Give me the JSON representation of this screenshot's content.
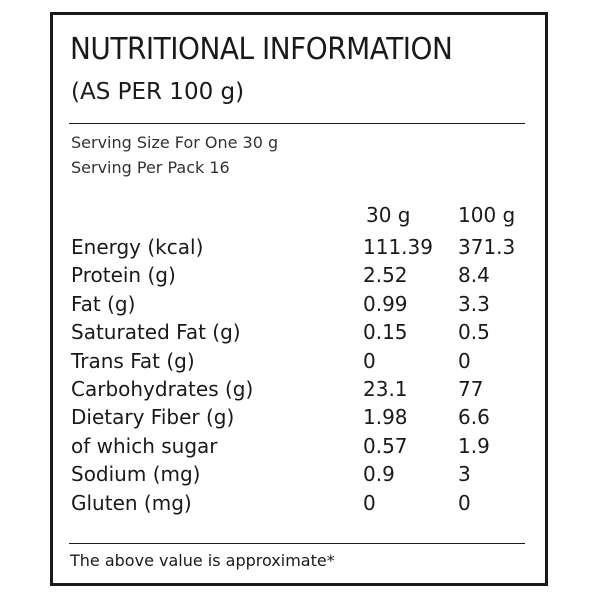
{
  "label": {
    "title": "NUTRITIONAL INFORMATION",
    "subtitle": "(AS PER 100 g)",
    "serving_size": "Serving Size For One 30 g",
    "serving_per_pack": "Serving Per Pack 16",
    "column_headers": [
      "30 g",
      "100 g"
    ],
    "rows": [
      {
        "nutrient": "Energy (kcal)",
        "per_30g": "111.39",
        "per_100g": "371.3"
      },
      {
        "nutrient": "Protein (g)",
        "per_30g": "2.52",
        "per_100g": "8.4"
      },
      {
        "nutrient": "Fat (g)",
        "per_30g": "0.99",
        "per_100g": "3.3"
      },
      {
        "nutrient": "Saturated Fat (g)",
        "per_30g": "0.15",
        "per_100g": "0.5"
      },
      {
        "nutrient": "Trans Fat (g)",
        "per_30g": "0",
        "per_100g": "0"
      },
      {
        "nutrient": "Carbohydrates (g)",
        "per_30g": "23.1",
        "per_100g": "77"
      },
      {
        "nutrient": "Dietary Fiber (g)",
        "per_30g": "1.98",
        "per_100g": "6.6"
      },
      {
        "nutrient": "of which sugar",
        "per_30g": "0.57",
        "per_100g": "1.9"
      },
      {
        "nutrient": "Sodium (mg)",
        "per_30g": "0.9",
        "per_100g": "3"
      },
      {
        "nutrient": "Gluten (mg)",
        "per_30g": "0",
        "per_100g": "0"
      }
    ],
    "footnote": "The above value is approximate*"
  }
}
